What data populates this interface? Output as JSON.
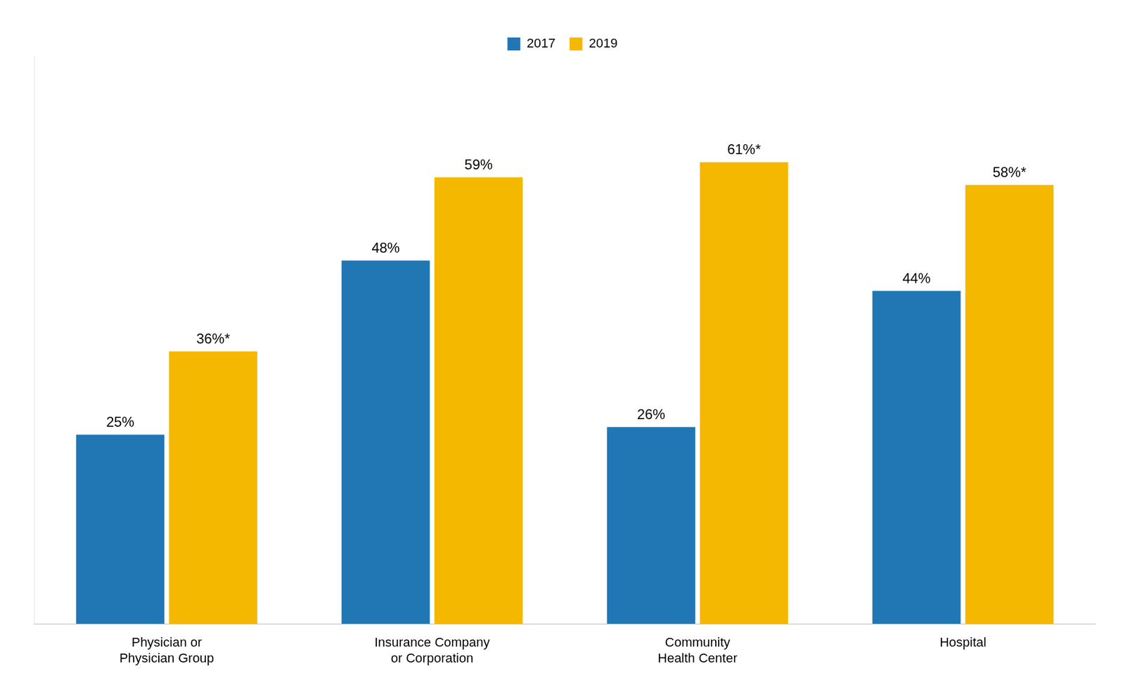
{
  "chart_data": {
    "type": "bar",
    "categories": [
      "Physician or\nPhysician Group",
      "Insurance Company\nor Corporation",
      "Community\nHealth Center",
      "Hospital"
    ],
    "series": [
      {
        "name": "2017",
        "color": "#2077B4",
        "values": [
          25,
          48,
          26,
          44
        ],
        "value_labels": [
          "25%",
          "48%",
          "26%",
          "44%"
        ]
      },
      {
        "name": "2019",
        "color": "#F5B800",
        "values": [
          36,
          59,
          61,
          58
        ],
        "value_labels": [
          "36%*",
          "59%",
          "61%*",
          "58%*"
        ]
      }
    ],
    "ylim": [
      0,
      75
    ],
    "grid": false,
    "legend": "top",
    "data_labels": true,
    "tick_labels": "x"
  }
}
